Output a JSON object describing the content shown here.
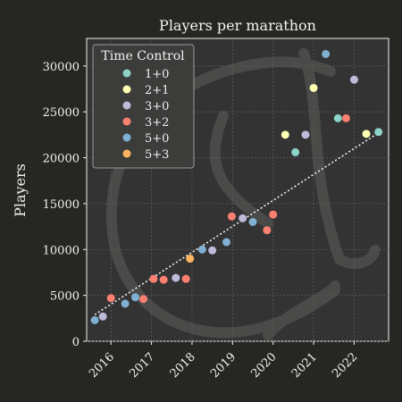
{
  "chart_data": {
    "type": "scatter",
    "title": "Players per marathon",
    "xlabel": "",
    "ylabel": "Players",
    "xlim": [
      2015.4,
      2022.85
    ],
    "ylim": [
      0,
      33000
    ],
    "x_ticks": [
      2016,
      2017,
      2018,
      2019,
      2020,
      2021,
      2022
    ],
    "y_ticks": [
      0,
      5000,
      10000,
      15000,
      20000,
      25000,
      30000
    ],
    "grid": true,
    "legend": {
      "title": "Time Control",
      "placement": "top-left"
    },
    "colors": {
      "background": "#262622",
      "plot_background": "#333333",
      "text": "#f2f2f2",
      "trendline": "#f2f2f2"
    },
    "series": [
      {
        "name": "1+0",
        "color": "#8dd3c7",
        "points": [
          [
            2021.6,
            24300
          ],
          [
            2022.6,
            22800
          ],
          [
            2020.55,
            20600
          ]
        ]
      },
      {
        "name": "2+1",
        "color": "#ffffb3",
        "points": [
          [
            2020.3,
            22500
          ],
          [
            2021.0,
            27600
          ],
          [
            2022.3,
            22600
          ]
        ]
      },
      {
        "name": "3+0",
        "color": "#bebada",
        "points": [
          [
            2015.8,
            2700
          ],
          [
            2017.6,
            6900
          ],
          [
            2018.5,
            9900
          ],
          [
            2019.25,
            13400
          ],
          [
            2020.8,
            22500
          ],
          [
            2022.0,
            28500
          ]
        ]
      },
      {
        "name": "3+2",
        "color": "#fb8072",
        "points": [
          [
            2016.0,
            4700
          ],
          [
            2016.8,
            4600
          ],
          [
            2017.05,
            6800
          ],
          [
            2017.3,
            6700
          ],
          [
            2017.85,
            6800
          ],
          [
            2018.98,
            13600
          ],
          [
            2019.85,
            12100
          ],
          [
            2020.0,
            13800
          ],
          [
            2021.8,
            24300
          ]
        ]
      },
      {
        "name": "5+0",
        "color": "#80b1d3",
        "points": [
          [
            2015.6,
            2300
          ],
          [
            2016.35,
            4100
          ],
          [
            2016.6,
            4800
          ],
          [
            2018.25,
            10000
          ],
          [
            2018.85,
            10800
          ],
          [
            2019.5,
            13000
          ],
          [
            2021.3,
            31300
          ]
        ]
      },
      {
        "name": "5+3",
        "color": "#fdb462",
        "points": [
          [
            2017.95,
            9000
          ]
        ]
      }
    ],
    "trendline": {
      "style": "dotted",
      "from": [
        2015.6,
        2900
      ],
      "to": [
        2022.6,
        22700
      ]
    }
  }
}
